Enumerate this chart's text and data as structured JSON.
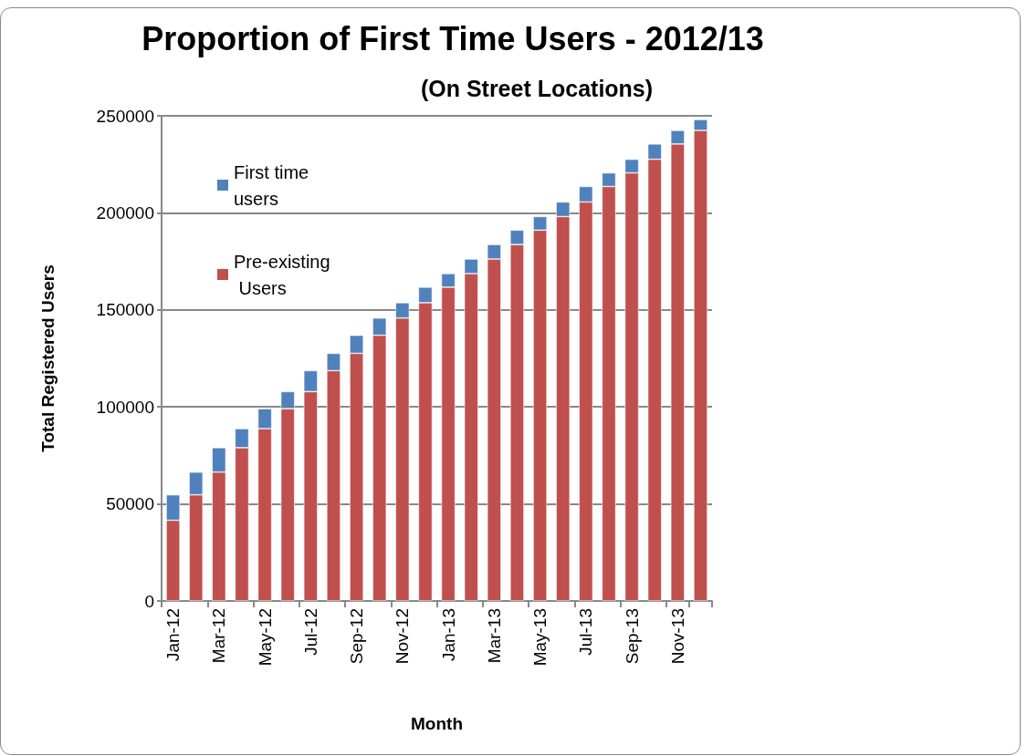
{
  "chart_data": {
    "type": "bar",
    "title": "Proportion of First Time Users - 2012/13",
    "subtitle": "(On Street Locations)",
    "xlabel": "Month",
    "ylabel": "Total Registered Users",
    "categories": [
      "Jan-12",
      null,
      "Mar-12",
      null,
      "May-12",
      null,
      "Jul-12",
      null,
      "Sep-12",
      null,
      "Nov-12",
      null,
      "Jan-13",
      null,
      "Mar-13",
      null,
      "May-13",
      null,
      "Jul-13",
      null,
      "Sep-13",
      null,
      "Nov-13",
      null
    ],
    "series": [
      {
        "name": "Pre-existing Users",
        "color": "#c0504d",
        "values": [
          41600,
          54700,
          66400,
          79000,
          88800,
          99100,
          107900,
          118700,
          127600,
          136900,
          145800,
          153700,
          161700,
          168700,
          176200,
          183700,
          191100,
          198100,
          205600,
          213600,
          220600,
          227600,
          235500,
          242500
        ]
      },
      {
        "name": "First time users",
        "color": "#4f81bd",
        "values": [
          13100,
          11700,
          12600,
          9800,
          10300,
          8800,
          10800,
          8900,
          9300,
          8900,
          7900,
          8000,
          7000,
          7500,
          7500,
          7400,
          7000,
          7500,
          8000,
          7000,
          7000,
          7900,
          7000,
          5600
        ]
      }
    ],
    "stacked": true,
    "ylim": [
      0,
      250000
    ],
    "yticks": [
      0,
      50000,
      100000,
      150000,
      200000,
      250000
    ],
    "grid": "y",
    "legend": "top left"
  }
}
